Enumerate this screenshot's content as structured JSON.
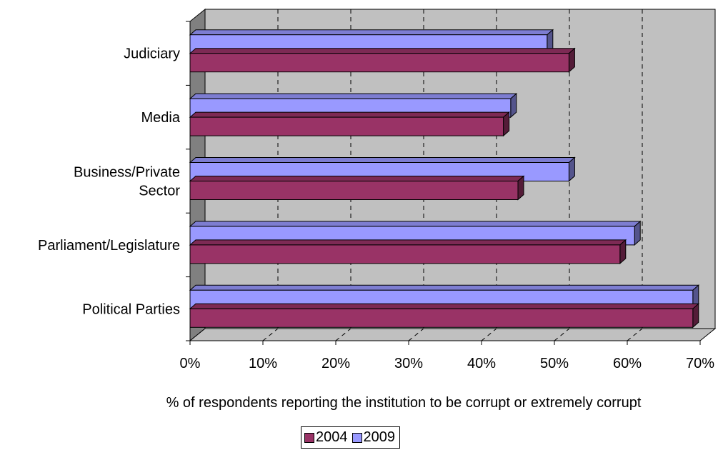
{
  "chart_data": {
    "type": "bar",
    "orientation": "horizontal",
    "three_d": true,
    "categories": [
      "Judiciary",
      "Media",
      "Business/Private Sector",
      "Parliament/Legislature",
      "Political Parties"
    ],
    "category_label_lines": [
      [
        "Judiciary"
      ],
      [
        "Media"
      ],
      [
        "Business/Private",
        "Sector"
      ],
      [
        "Parliament/Legislature"
      ],
      [
        "Political Parties"
      ]
    ],
    "series": [
      {
        "name": "2004",
        "values": [
          52,
          43,
          45,
          59,
          69
        ],
        "color": "#993366"
      },
      {
        "name": "2009",
        "values": [
          49,
          44,
          52,
          61,
          69
        ],
        "color": "#9999ff"
      }
    ],
    "xlabel": "% of respondents reporting the institution to be corrupt or extremely corrupt",
    "xlim": [
      0,
      70
    ],
    "xticks": [
      0,
      10,
      20,
      30,
      40,
      50,
      60,
      70
    ],
    "tick_format": "percent",
    "grid": "vertical-dashed",
    "wall_color": "#c0c0c0",
    "legend": {
      "position": "bottom-center",
      "entries": [
        "2004",
        "2009"
      ]
    }
  }
}
